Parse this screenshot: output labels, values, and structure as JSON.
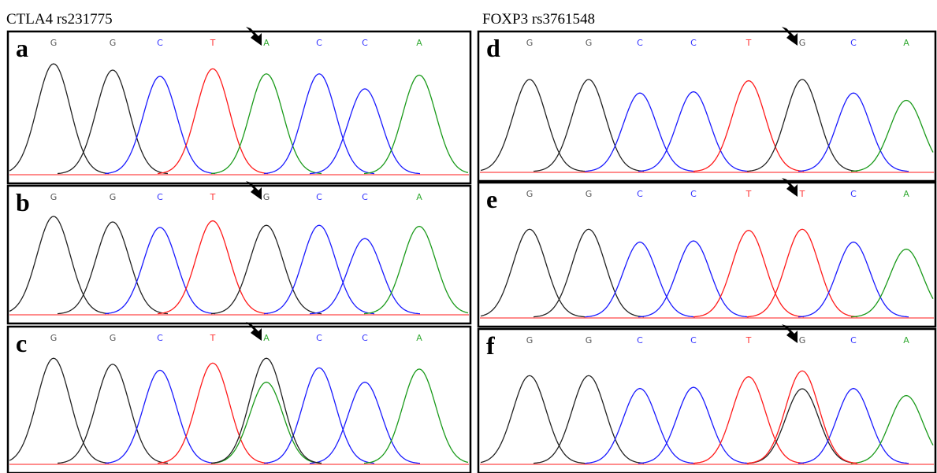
{
  "groups": [
    {
      "title": "CTLA4 rs231775",
      "panels": [
        {
          "letter": "a",
          "bases": [
            "G",
            "G",
            "C",
            "T",
            "A",
            "C",
            "C",
            "A"
          ]
        },
        {
          "letter": "b",
          "bases": [
            "G",
            "G",
            "C",
            "T",
            "G",
            "C",
            "C",
            "A"
          ]
        },
        {
          "letter": "c",
          "bases": [
            "G",
            "G",
            "C",
            "T",
            "A",
            "C",
            "C",
            "A"
          ]
        }
      ]
    },
    {
      "title": "FOXP3 rs3761548",
      "panels": [
        {
          "letter": "d",
          "bases": [
            "G",
            "G",
            "C",
            "C",
            "T",
            "G",
            "C",
            "A"
          ]
        },
        {
          "letter": "e",
          "bases": [
            "G",
            "G",
            "C",
            "C",
            "T",
            "T",
            "C",
            "A"
          ]
        },
        {
          "letter": "f",
          "bases": [
            "G",
            "G",
            "C",
            "C",
            "T",
            "G",
            "C",
            "A"
          ]
        }
      ]
    }
  ]
}
